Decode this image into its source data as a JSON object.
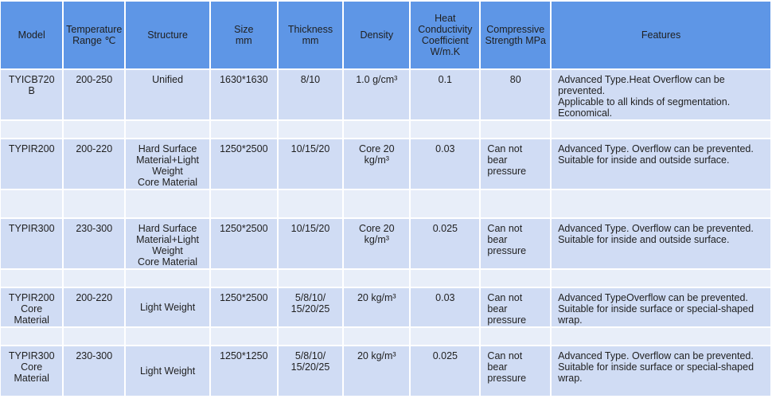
{
  "colors": {
    "header": "#5e96e6",
    "row": "#d0dcf4",
    "spacer": "#e8eef9"
  },
  "headers": [
    "Model",
    "Temperature Range ℃",
    "Structure",
    "Size mm",
    "Thickness mm",
    "Density",
    "Heat Conductivity Coefficient W/m.K",
    "Compressive Strength MPa",
    "Features"
  ],
  "rows": [
    {
      "model": "TYICB720 B",
      "temp": "200-250",
      "structure": "Unified",
      "size": "1630*1630",
      "thickness": "8/10",
      "density": "1.0 g/cm³",
      "heat": "0.1",
      "compressive": "80",
      "features": "Advanced Type.Heat Overflow can be prevented.\nApplicable to all kinds of segmentation.\nEconomical."
    },
    {
      "model": "TYPIR200",
      "temp": "200-220",
      "structure": "Hard Surface Material+Light Weight\nCore Material",
      "size": "1250*2500",
      "thickness": "10/15/20",
      "density": "Core 20 kg/m³",
      "heat": "0.03",
      "compressive": "Can not bear pressure",
      "features": "Advanced Type. Overflow can be prevented.\nSuitable for inside and outside surface."
    },
    {
      "model": "TYPIR300",
      "temp": "230-300",
      "structure": "Hard Surface Material+Light Weight\nCore Material",
      "size": "1250*2500",
      "thickness": "10/15/20",
      "density": "Core 20 kg/m³",
      "heat": "0.025",
      "compressive": "Can not bear pressure",
      "features": "Advanced Type. Overflow can be prevented.\nSuitable for inside and outside surface."
    },
    {
      "model": "TYPIR200 Core Material",
      "temp": "200-220",
      "structure": "Light Weight",
      "size": "1250*2500",
      "thickness": "5/8/10/ 15/20/25",
      "density": "20 kg/m³",
      "heat": "0.03",
      "compressive": "Can not bear pressure",
      "features": "Advanced TypeOverflow can be prevented.\nSuitable for inside surface or special-shaped wrap."
    },
    {
      "model": "TYPIR300 Core Material",
      "temp": "230-300",
      "structure": "Light Weight",
      "size": "1250*1250",
      "thickness": "5/8/10/ 15/20/25",
      "density": "20 kg/m³",
      "heat": "0.025",
      "compressive": "Can not bear pressure",
      "features": "Advanced Type. Overflow can be prevented.\nSuitable for inside surface or special-shaped wrap."
    }
  ]
}
